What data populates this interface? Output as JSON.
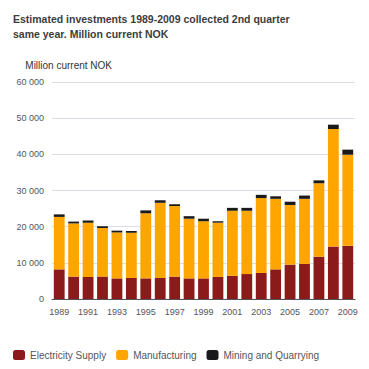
{
  "chart_data": {
    "type": "bar",
    "title": "Estimated investments 1989-2009 collected 2nd quarter\nsame year. Million current NOK",
    "ylabel": "Million current NOK",
    "categories": [
      "1989",
      null,
      "1991",
      null,
      "1993",
      null,
      "1995",
      null,
      "1997",
      null,
      "1999",
      null,
      "2001",
      null,
      "2003",
      null,
      "2005",
      null,
      "2007",
      null,
      "2009"
    ],
    "series": [
      {
        "name": "Electricity Supply",
        "color": "#8B1A1A",
        "values": [
          8200,
          6200,
          6100,
          6200,
          5700,
          5800,
          5700,
          5800,
          6200,
          5700,
          5700,
          6100,
          6400,
          6900,
          7200,
          8200,
          9500,
          9700,
          11700,
          14500,
          14700
        ]
      },
      {
        "name": "Manufacturing",
        "color": "#FFA500",
        "values": [
          14500,
          14700,
          15000,
          13400,
          12700,
          12500,
          18000,
          20800,
          19500,
          16500,
          15800,
          15000,
          18000,
          17500,
          20700,
          19500,
          16500,
          18000,
          20300,
          32500,
          25200
        ]
      },
      {
        "name": "Mining and Quarrying",
        "color": "#1A1A1A",
        "values": [
          700,
          500,
          600,
          500,
          500,
          500,
          800,
          700,
          500,
          700,
          700,
          400,
          800,
          800,
          900,
          700,
          900,
          900,
          800,
          1200,
          1400
        ]
      }
    ],
    "stacked": true,
    "ylim": [
      0,
      60000
    ],
    "yticks": [
      0,
      {
        "value": 10000,
        "label": "10 000"
      },
      {
        "value": 20000,
        "label": "20 000"
      },
      {
        "value": 30000,
        "label": "30 000"
      },
      {
        "value": 40000,
        "label": "40 000"
      },
      {
        "value": 50000,
        "label": "50 000"
      },
      {
        "value": 60000,
        "label": "60 000"
      }
    ],
    "grid": true,
    "legend": "bottom"
  }
}
